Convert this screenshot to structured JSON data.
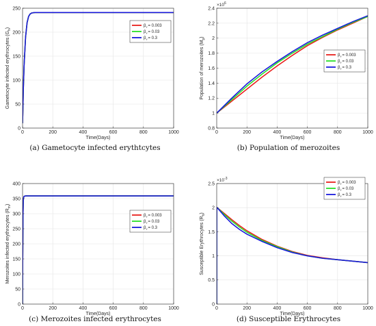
{
  "chart_data": [
    {
      "type": "line",
      "caption": "(a) Gametocyte infected erythtcytes",
      "title": "",
      "xlabel": "Time(Days)",
      "ylabel": "Gametocyte infected erythrocytes (G",
      "ylabel_sub": "h",
      "ylabel_end": ")",
      "exponent": "",
      "xlim": [
        0,
        1000
      ],
      "ylim": [
        0,
        250
      ],
      "xticks": [
        0,
        200,
        400,
        600,
        800,
        1000
      ],
      "yticks": [
        0,
        50,
        100,
        150,
        200,
        250
      ],
      "ytick_labels": [
        "0",
        "50",
        "100",
        "150",
        "200",
        "250"
      ],
      "legend_position": "top-right",
      "grid": true,
      "series": [
        {
          "name": "= 0.003",
          "color": "#e8201c",
          "x": [
            0,
            5,
            10,
            20,
            30,
            40,
            50,
            60,
            80,
            100,
            150,
            200,
            400,
            600,
            800,
            1000
          ],
          "y": [
            10,
            80,
            130,
            190,
            220,
            233,
            238,
            240,
            241,
            241,
            241,
            241,
            241,
            241,
            241,
            241
          ]
        },
        {
          "name": "= 0.03",
          "color": "#28e028",
          "x": [
            0,
            5,
            10,
            20,
            30,
            40,
            50,
            60,
            80,
            100,
            150,
            200,
            400,
            600,
            800,
            1000
          ],
          "y": [
            10,
            80,
            130,
            190,
            220,
            233,
            238,
            240,
            241,
            241,
            241,
            241,
            241,
            241,
            241,
            241
          ]
        },
        {
          "name": "= 0.3",
          "color": "#1a1adc",
          "x": [
            0,
            5,
            10,
            20,
            30,
            40,
            50,
            60,
            80,
            100,
            150,
            200,
            400,
            600,
            800,
            1000
          ],
          "y": [
            10,
            80,
            130,
            190,
            220,
            233,
            238,
            240,
            241,
            241,
            241,
            241,
            241,
            241,
            241,
            241
          ]
        }
      ]
    },
    {
      "type": "line",
      "caption": "(b) Population of merozoites",
      "title": "",
      "xlabel": "Time(Days)",
      "ylabel": "Population of merozoites (M",
      "ylabel_sub": "p",
      "ylabel_end": ")",
      "exponent": "×10",
      "exponent_power": "6",
      "xlim": [
        0,
        1000
      ],
      "ylim": [
        0.8,
        2.4
      ],
      "xticks": [
        0,
        200,
        400,
        600,
        800,
        1000
      ],
      "yticks": [
        0.8,
        1.0,
        1.2,
        1.4,
        1.6,
        1.8,
        2.0,
        2.2,
        2.4
      ],
      "ytick_labels": [
        "0.8",
        "1",
        "1.2",
        "1.4",
        "1.6",
        "1.8",
        "2",
        "2.2",
        "2.4"
      ],
      "legend_position": "center-right",
      "grid": true,
      "series": [
        {
          "name": "= 0.003",
          "color": "#e8201c",
          "x": [
            0,
            100,
            200,
            300,
            400,
            500,
            600,
            700,
            800,
            900,
            1000
          ],
          "y": [
            1.0,
            1.16,
            1.32,
            1.48,
            1.63,
            1.77,
            1.9,
            2.01,
            2.11,
            2.2,
            2.29
          ]
        },
        {
          "name": "= 0.03",
          "color": "#28e028",
          "x": [
            0,
            100,
            200,
            300,
            400,
            500,
            600,
            700,
            800,
            900,
            1000
          ],
          "y": [
            1.0,
            1.18,
            1.36,
            1.52,
            1.67,
            1.8,
            1.92,
            2.02,
            2.12,
            2.21,
            2.29
          ]
        },
        {
          "name": "= 0.3",
          "color": "#1a1adc",
          "x": [
            0,
            100,
            200,
            300,
            400,
            500,
            600,
            700,
            800,
            900,
            1000
          ],
          "y": [
            1.0,
            1.2,
            1.39,
            1.55,
            1.69,
            1.82,
            1.94,
            2.04,
            2.13,
            2.22,
            2.3
          ]
        }
      ]
    },
    {
      "type": "line",
      "caption": "(c) Merozoites infected erythrocytes",
      "title": "",
      "xlabel": "Time(Days)",
      "ylabel": "Merozoites infected erythrocytes (R",
      "ylabel_sub": "m",
      "ylabel_end": ")",
      "exponent": "",
      "xlim": [
        0,
        1000
      ],
      "ylim": [
        0,
        400
      ],
      "xticks": [
        0,
        200,
        400,
        600,
        800,
        1000
      ],
      "yticks": [
        0,
        50,
        100,
        150,
        200,
        250,
        300,
        350,
        400
      ],
      "ytick_labels": [
        "0",
        "50",
        "100",
        "150",
        "200",
        "250",
        "300",
        "350",
        "400"
      ],
      "legend_position": "center-right",
      "grid": true,
      "series": [
        {
          "name": "= 0.003",
          "color": "#e8201c",
          "x": [
            0,
            1,
            3,
            5,
            8,
            12,
            20,
            30,
            50,
            200,
            400,
            600,
            800,
            1000
          ],
          "y": [
            0,
            150,
            300,
            345,
            356,
            358,
            359,
            359,
            359,
            359,
            359,
            359,
            359,
            359
          ]
        },
        {
          "name": "= 0.03",
          "color": "#28e028",
          "x": [
            0,
            1,
            3,
            5,
            8,
            12,
            20,
            30,
            50,
            200,
            400,
            600,
            800,
            1000
          ],
          "y": [
            0,
            150,
            300,
            345,
            356,
            358,
            359,
            359,
            359,
            359,
            359,
            359,
            359,
            359
          ]
        },
        {
          "name": "= 0.3",
          "color": "#1a1adc",
          "x": [
            0,
            1,
            3,
            5,
            8,
            12,
            20,
            30,
            50,
            200,
            400,
            600,
            800,
            1000
          ],
          "y": [
            0,
            150,
            300,
            345,
            356,
            358,
            359,
            359,
            359,
            359,
            359,
            359,
            359,
            359
          ]
        }
      ]
    },
    {
      "type": "line",
      "caption": "(d) Susceptible Erythrocytes",
      "title": "",
      "xlabel": "Time(Days)",
      "ylabel": "Susceptible Erythrocytes (R",
      "ylabel_sub": "h",
      "ylabel_end": ")",
      "exponent": "×10",
      "exponent_power": "-3",
      "xlim": [
        0,
        1000
      ],
      "ylim": [
        0,
        2.5
      ],
      "xticks": [
        0,
        200,
        400,
        600,
        800,
        1000
      ],
      "yticks": [
        0,
        0.5,
        1.0,
        1.5,
        2.0,
        2.5
      ],
      "ytick_labels": [
        "0",
        "0.5",
        "1",
        "1.5",
        "2",
        "2.5"
      ],
      "legend_position": "top-right",
      "grid": true,
      "series": [
        {
          "name": "= 0.003",
          "color": "#e8201c",
          "x": [
            0,
            0.5,
            3,
            50,
            100,
            150,
            200,
            300,
            400,
            500,
            600,
            700,
            800,
            900,
            1000
          ],
          "y": [
            0,
            2.0,
            2.0,
            1.88,
            1.75,
            1.63,
            1.52,
            1.34,
            1.2,
            1.09,
            1.01,
            0.96,
            0.92,
            0.89,
            0.86
          ]
        },
        {
          "name": "= 0.03",
          "color": "#28e028",
          "x": [
            0,
            0.5,
            3,
            50,
            100,
            150,
            200,
            300,
            400,
            500,
            600,
            700,
            800,
            900,
            1000
          ],
          "y": [
            0,
            2.0,
            2.0,
            1.86,
            1.72,
            1.6,
            1.49,
            1.32,
            1.19,
            1.08,
            1.0,
            0.95,
            0.92,
            0.89,
            0.86
          ]
        },
        {
          "name": "= 0.3",
          "color": "#1a1adc",
          "x": [
            0,
            0.5,
            3,
            50,
            100,
            150,
            200,
            300,
            400,
            500,
            600,
            700,
            800,
            900,
            1000
          ],
          "y": [
            0,
            2.0,
            2.0,
            1.83,
            1.67,
            1.55,
            1.45,
            1.3,
            1.17,
            1.07,
            1.0,
            0.95,
            0.92,
            0.89,
            0.86
          ]
        }
      ]
    }
  ]
}
